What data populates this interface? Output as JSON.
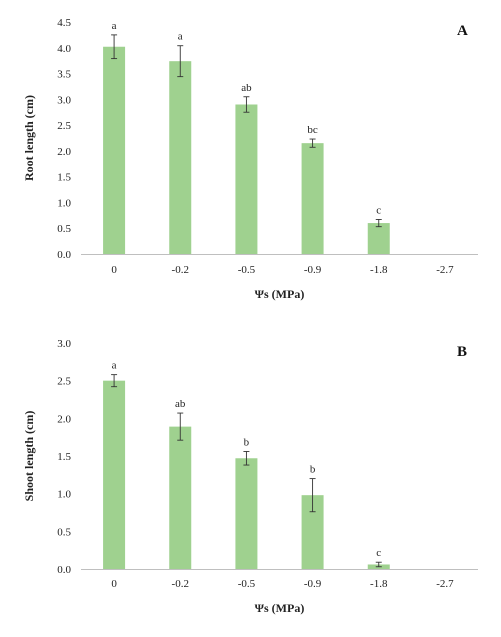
{
  "bar_color": "#9fd18f",
  "chart_data": [
    {
      "type": "bar",
      "panel_label": "A",
      "categories": [
        "0",
        "-0.2",
        "-0.5",
        "-0.9",
        "-1.8",
        "-2.7"
      ],
      "values": [
        4.02,
        3.74,
        2.9,
        2.15,
        0.6,
        0
      ],
      "errors": [
        0.23,
        0.3,
        0.15,
        0.08,
        0.07,
        0
      ],
      "significance": [
        "a",
        "a",
        "ab",
        "bc",
        "c",
        ""
      ],
      "xlabel": "Ψs (MPa)",
      "ylabel": "Root length (cm)",
      "ylim": [
        0,
        4.5
      ],
      "yticks": [
        "0.0",
        "0.5",
        "1.0",
        "1.5",
        "2.0",
        "2.5",
        "3.0",
        "3.5",
        "4.0",
        "4.5"
      ],
      "grid": false,
      "legend": "none"
    },
    {
      "type": "bar",
      "panel_label": "B",
      "categories": [
        "0",
        "-0.2",
        "-0.5",
        "-0.9",
        "-1.8",
        "-2.7"
      ],
      "values": [
        2.5,
        1.89,
        1.47,
        0.98,
        0.06,
        0
      ],
      "errors": [
        0.08,
        0.18,
        0.09,
        0.22,
        0.03,
        0
      ],
      "significance": [
        "a",
        "ab",
        "b",
        "b",
        "c",
        ""
      ],
      "xlabel": "Ψs (MPa)",
      "ylabel": "Shoot length (cm)",
      "ylim": [
        0,
        3.0
      ],
      "yticks": [
        "0.0",
        "0.5",
        "1.0",
        "1.5",
        "2.0",
        "2.5",
        "3.0"
      ],
      "grid": false,
      "legend": "none"
    }
  ]
}
